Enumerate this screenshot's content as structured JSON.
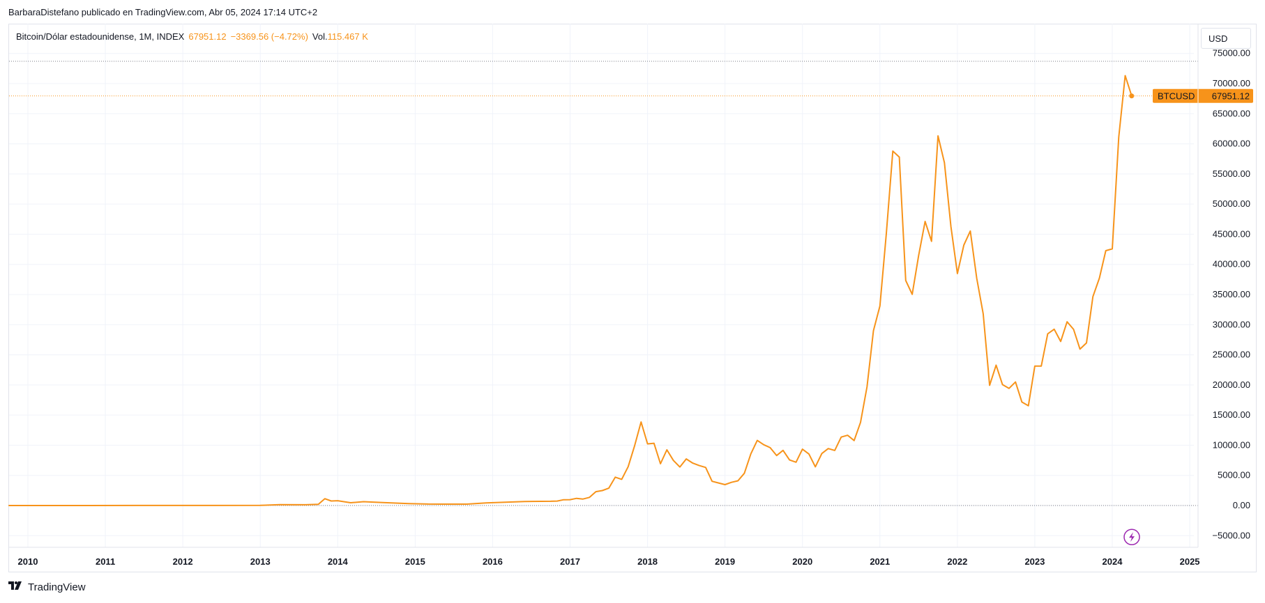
{
  "header": {
    "publisher_line": "BarbaraDistefano publicado en TradingView.com, Abr 05, 2024 17:14 UTC+2"
  },
  "legend": {
    "symbol_line": "Bitcoin/Dólar estadounidense, 1M, INDEX",
    "last": "67951.12",
    "change": "−3369.56 (−4.72%)",
    "vol_label": "Vol.",
    "vol_value": "115.467 K"
  },
  "currency_button": {
    "label": "USD"
  },
  "price_tag": {
    "symbol": "BTCUSD",
    "value": "67951.12"
  },
  "footer": {
    "brand": "TradingView"
  },
  "colors": {
    "series": "#f7931a",
    "grid": "#f0f3fa",
    "axis_text": "#131722",
    "alert": "#9c27b0"
  },
  "icons": {
    "alert": "lightning-bolt-icon",
    "logo": "tradingview-logo-icon"
  },
  "chart_data": {
    "type": "line",
    "series": [
      {
        "name": "BTCUSD",
        "values_note": "monthly close"
      }
    ],
    "ylim": [
      -7000,
      76000
    ],
    "yticks": [
      "75000.00",
      "70000.00",
      "65000.00",
      "60000.00",
      "55000.00",
      "50000.00",
      "45000.00",
      "40000.00",
      "35000.00",
      "30000.00",
      "25000.00",
      "20000.00",
      "15000.00",
      "10000.00",
      "5000.00",
      "0.00",
      "−5000.00"
    ],
    "xticks": [
      "2010",
      "2011",
      "2012",
      "2013",
      "2014",
      "2015",
      "2016",
      "2017",
      "2018",
      "2019",
      "2020",
      "2021",
      "2022",
      "2023",
      "2024",
      "2025"
    ],
    "points": [
      [
        "2009-10",
        0
      ],
      [
        "2010-06",
        0
      ],
      [
        "2011-06",
        15
      ],
      [
        "2012-06",
        6
      ],
      [
        "2013-01",
        20
      ],
      [
        "2013-04",
        140
      ],
      [
        "2013-08",
        130
      ],
      [
        "2013-10",
        200
      ],
      [
        "2013-11",
        1130
      ],
      [
        "2013-12",
        750
      ],
      [
        "2014-01",
        800
      ],
      [
        "2014-03",
        460
      ],
      [
        "2014-05",
        630
      ],
      [
        "2014-08",
        480
      ],
      [
        "2014-12",
        320
      ],
      [
        "2015-03",
        245
      ],
      [
        "2015-09",
        236
      ],
      [
        "2015-12",
        430
      ],
      [
        "2016-06",
        670
      ],
      [
        "2016-10",
        700
      ],
      [
        "2016-11",
        740
      ],
      [
        "2016-12",
        960
      ],
      [
        "2017-01",
        965
      ],
      [
        "2017-02",
        1190
      ],
      [
        "2017-03",
        1080
      ],
      [
        "2017-04",
        1350
      ],
      [
        "2017-05",
        2300
      ],
      [
        "2017-06",
        2480
      ],
      [
        "2017-07",
        2875
      ],
      [
        "2017-08",
        4700
      ],
      [
        "2017-09",
        4340
      ],
      [
        "2017-10",
        6450
      ],
      [
        "2017-11",
        9950
      ],
      [
        "2017-12",
        13860
      ],
      [
        "2018-01",
        10220
      ],
      [
        "2018-02",
        10330
      ],
      [
        "2018-03",
        6930
      ],
      [
        "2018-04",
        9240
      ],
      [
        "2018-05",
        7490
      ],
      [
        "2018-06",
        6390
      ],
      [
        "2018-07",
        7730
      ],
      [
        "2018-08",
        7030
      ],
      [
        "2018-09",
        6630
      ],
      [
        "2018-10",
        6320
      ],
      [
        "2018-11",
        4020
      ],
      [
        "2018-12",
        3740
      ],
      [
        "2019-01",
        3460
      ],
      [
        "2019-02",
        3850
      ],
      [
        "2019-03",
        4100
      ],
      [
        "2019-04",
        5350
      ],
      [
        "2019-05",
        8570
      ],
      [
        "2019-06",
        10800
      ],
      [
        "2019-07",
        10080
      ],
      [
        "2019-08",
        9600
      ],
      [
        "2019-09",
        8290
      ],
      [
        "2019-10",
        9150
      ],
      [
        "2019-11",
        7550
      ],
      [
        "2019-12",
        7190
      ],
      [
        "2020-01",
        9350
      ],
      [
        "2020-02",
        8540
      ],
      [
        "2020-03",
        6420
      ],
      [
        "2020-04",
        8630
      ],
      [
        "2020-05",
        9450
      ],
      [
        "2020-06",
        9140
      ],
      [
        "2020-07",
        11350
      ],
      [
        "2020-08",
        11650
      ],
      [
        "2020-09",
        10780
      ],
      [
        "2020-10",
        13790
      ],
      [
        "2020-11",
        19700
      ],
      [
        "2020-12",
        28990
      ],
      [
        "2021-01",
        33110
      ],
      [
        "2021-02",
        45140
      ],
      [
        "2021-03",
        58800
      ],
      [
        "2021-04",
        57800
      ],
      [
        "2021-05",
        37330
      ],
      [
        "2021-06",
        35040
      ],
      [
        "2021-07",
        41460
      ],
      [
        "2021-08",
        47130
      ],
      [
        "2021-09",
        43820
      ],
      [
        "2021-10",
        61320
      ],
      [
        "2021-11",
        56880
      ],
      [
        "2021-12",
        46300
      ],
      [
        "2022-01",
        38480
      ],
      [
        "2022-02",
        43190
      ],
      [
        "2022-03",
        45540
      ],
      [
        "2022-04",
        37710
      ],
      [
        "2022-05",
        31800
      ],
      [
        "2022-06",
        19940
      ],
      [
        "2022-07",
        23290
      ],
      [
        "2022-08",
        20050
      ],
      [
        "2022-09",
        19430
      ],
      [
        "2022-10",
        20490
      ],
      [
        "2022-11",
        17170
      ],
      [
        "2022-12",
        16550
      ],
      [
        "2023-01",
        23130
      ],
      [
        "2023-02",
        23140
      ],
      [
        "2023-03",
        28480
      ],
      [
        "2023-04",
        29250
      ],
      [
        "2023-05",
        27220
      ],
      [
        "2023-06",
        30480
      ],
      [
        "2023-07",
        29230
      ],
      [
        "2023-08",
        25940
      ],
      [
        "2023-09",
        26970
      ],
      [
        "2023-10",
        34640
      ],
      [
        "2023-11",
        37720
      ],
      [
        "2023-12",
        42280
      ],
      [
        "2024-01",
        42580
      ],
      [
        "2024-02",
        61130
      ],
      [
        "2024-03",
        71320
      ],
      [
        "2024-04",
        67951.12
      ]
    ]
  }
}
